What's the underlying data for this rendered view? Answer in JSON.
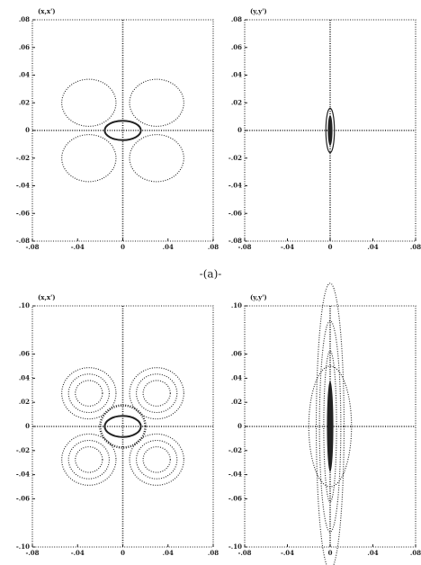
{
  "chart_data": [
    {
      "type": "phase",
      "title": "(x,x')",
      "xlim": [
        -0.08,
        0.08
      ],
      "ylim": [
        -0.08,
        0.08
      ],
      "xticks": [
        {
          "value": -0.08,
          "label": "-.08"
        },
        {
          "value": -0.04,
          "label": "-.04"
        },
        0,
        {
          "value": 0.04,
          "label": ".04"
        },
        {
          "value": 0.08,
          "label": ".08"
        }
      ],
      "yticks": [
        {
          "value": 0.08,
          "label": ".08"
        },
        {
          "value": 0.06,
          "label": ".06"
        },
        {
          "value": 0.04,
          "label": ".04"
        },
        {
          "value": 0.02,
          "label": ".02"
        },
        0,
        {
          "value": -0.02,
          "label": "-.02"
        },
        {
          "value": -0.04,
          "label": "-.04"
        },
        {
          "value": -0.06,
          "label": "-.06"
        },
        {
          "value": -0.08,
          "label": "-.08"
        }
      ]
    },
    {
      "type": "phase",
      "title": "(y,y')",
      "xlim": [
        -0.08,
        0.08
      ],
      "ylim": [
        -0.08,
        0.08
      ],
      "xticks": [
        {
          "value": -0.08,
          "label": "-.08"
        },
        {
          "value": -0.04,
          "label": "-.04"
        },
        0,
        {
          "value": 0.04,
          "label": ".04"
        },
        {
          "value": 0.08,
          "label": ".08"
        }
      ],
      "yticks": [
        {
          "value": 0.08,
          "label": ".08"
        },
        {
          "value": 0.06,
          "label": ".06"
        },
        {
          "value": 0.04,
          "label": ".04"
        },
        {
          "value": 0.02,
          "label": ".02"
        },
        0,
        {
          "value": -0.02,
          "label": "-.02"
        },
        {
          "value": -0.04,
          "label": "-.04"
        },
        {
          "value": -0.06,
          "label": "-.06"
        },
        {
          "value": -0.08,
          "label": "-.08"
        }
      ]
    },
    {
      "type": "phase",
      "title": "(x,x')",
      "xlim": [
        -0.08,
        0.08
      ],
      "ylim": [
        -0.1,
        0.1
      ],
      "xticks": [
        {
          "value": -0.08,
          "label": "-.08"
        },
        {
          "value": -0.04,
          "label": "-.04"
        },
        0,
        {
          "value": 0.04,
          "label": ".04"
        },
        {
          "value": 0.08,
          "label": ".08"
        }
      ],
      "yticks": [
        {
          "value": 0.1,
          "label": ".10"
        },
        {
          "value": 0.06,
          "label": ".06"
        },
        {
          "value": 0.04,
          "label": ".04"
        },
        {
          "value": 0.02,
          "label": ".02"
        },
        0,
        {
          "value": -0.02,
          "label": "-.02"
        },
        {
          "value": -0.04,
          "label": "-.04"
        },
        {
          "value": -0.06,
          "label": "-.06"
        },
        {
          "value": -0.1,
          "label": "-.10"
        }
      ]
    },
    {
      "type": "phase",
      "title": "(y,y')",
      "xlim": [
        -0.08,
        0.08
      ],
      "ylim": [
        -0.1,
        0.1
      ],
      "xticks": [
        {
          "value": -0.08,
          "label": "-.08"
        },
        {
          "value": -0.04,
          "label": "-.04"
        },
        0,
        {
          "value": 0.04,
          "label": ".04"
        },
        {
          "value": 0.08,
          "label": ".08"
        }
      ],
      "yticks": [
        {
          "value": 0.1,
          "label": ".10"
        },
        {
          "value": 0.06,
          "label": ".06"
        },
        {
          "value": 0.04,
          "label": ".04"
        },
        {
          "value": 0.02,
          "label": ".02"
        },
        0,
        {
          "value": -0.02,
          "label": "-.02"
        },
        {
          "value": -0.04,
          "label": "-.04"
        },
        {
          "value": -0.06,
          "label": "-.06"
        },
        {
          "value": -0.1,
          "label": "-.10"
        }
      ]
    }
  ],
  "caption": "-(a)-"
}
